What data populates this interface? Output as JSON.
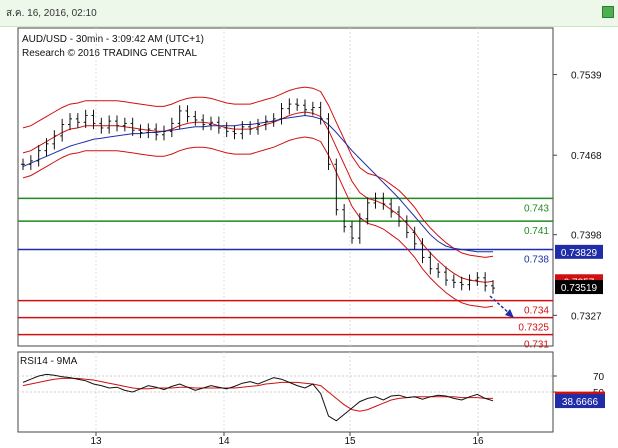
{
  "window": {
    "timestamp": "ส.ค. 16, 2016, 02:10"
  },
  "chart_data": {
    "type": "line",
    "title": "AUD/USD - 30min - 3:09:42 AM (UTC+1)",
    "subtitle": "Research © 2016 TRADING CENTRAL",
    "price_axis_ticks": [
      "0.7539",
      "0.7468",
      "0.7398",
      "0.7327"
    ],
    "ylim": [
      0.73,
      0.758
    ],
    "x_ticks": [
      "13",
      "14",
      "15",
      "16"
    ],
    "levels": [
      {
        "label": "0.743",
        "value": 0.743,
        "color": "#1f8a1f"
      },
      {
        "label": "0.741",
        "value": 0.741,
        "color": "#1f8a1f"
      },
      {
        "label": "0.738",
        "value": 0.7385,
        "color": "#1f2ea8"
      },
      {
        "label": "0.734",
        "value": 0.734,
        "color": "#d01010"
      },
      {
        "label": "0.7325",
        "value": 0.7325,
        "color": "#d01010"
      },
      {
        "label": "0.731",
        "value": 0.731,
        "color": "#d01010"
      }
    ],
    "price_tags": [
      {
        "label": "0.73829",
        "value": 0.73829,
        "color": "#1f2ea8"
      },
      {
        "label": "0.7357",
        "value": 0.7357,
        "color": "#d01010"
      },
      {
        "label": "0.73519",
        "value": 0.73519,
        "color": "#000000"
      }
    ],
    "price_series": [
      0.746,
      0.7463,
      0.7472,
      0.7478,
      0.7485,
      0.7495,
      0.75,
      0.7497,
      0.7503,
      0.7496,
      0.7492,
      0.7498,
      0.7494,
      0.7496,
      0.749,
      0.7488,
      0.7491,
      0.7486,
      0.7489,
      0.7496,
      0.7507,
      0.7502,
      0.7499,
      0.7495,
      0.7497,
      0.7492,
      0.7489,
      0.7487,
      0.7493,
      0.7491,
      0.7495,
      0.7498,
      0.75,
      0.7509,
      0.7513,
      0.7512,
      0.7508,
      0.751,
      0.75,
      0.746,
      0.742,
      0.7405,
      0.7395,
      0.7412,
      0.7426,
      0.743,
      0.7425,
      0.7418,
      0.741,
      0.74,
      0.739,
      0.7378,
      0.7368,
      0.7365,
      0.7358,
      0.7356,
      0.7354,
      0.7358,
      0.736,
      0.7353,
      0.7351
    ],
    "ma_fast": [
      0.747,
      0.7472,
      0.7476,
      0.748,
      0.7484,
      0.7488,
      0.7491,
      0.7492,
      0.7494,
      0.7494,
      0.7494,
      0.7494,
      0.7494,
      0.7493,
      0.7492,
      0.7491,
      0.749,
      0.7489,
      0.7489,
      0.7491,
      0.7494,
      0.7496,
      0.7497,
      0.7497,
      0.7496,
      0.7494,
      0.7492,
      0.7491,
      0.7491,
      0.7491,
      0.7493,
      0.7495,
      0.7497,
      0.75,
      0.7503,
      0.7505,
      0.7506,
      0.7505,
      0.7502,
      0.749,
      0.7475,
      0.746,
      0.7445,
      0.7435,
      0.743,
      0.7428,
      0.7425,
      0.742,
      0.7415,
      0.7408,
      0.74,
      0.739,
      0.7382,
      0.7375,
      0.7369,
      0.7364,
      0.736,
      0.7358,
      0.7357,
      0.7356,
      0.7357
    ],
    "ma_slow": [
      0.7458,
      0.7461,
      0.7464,
      0.7467,
      0.747,
      0.7473,
      0.7476,
      0.7478,
      0.748,
      0.7482,
      0.7483,
      0.7484,
      0.7485,
      0.7486,
      0.7487,
      0.7487,
      0.7488,
      0.7488,
      0.7489,
      0.749,
      0.7491,
      0.7492,
      0.7493,
      0.7493,
      0.7494,
      0.7494,
      0.7494,
      0.7494,
      0.7495,
      0.7495,
      0.7496,
      0.7497,
      0.7498,
      0.75,
      0.7501,
      0.7502,
      0.7503,
      0.7502,
      0.75,
      0.7495,
      0.7488,
      0.748,
      0.7472,
      0.7465,
      0.7458,
      0.7451,
      0.7444,
      0.7437,
      0.743,
      0.7422,
      0.7414,
      0.7406,
      0.7398,
      0.7392,
      0.7388,
      0.7386,
      0.7385,
      0.7384,
      0.7383,
      0.7383,
      0.7383
    ],
    "rsi": {
      "label": "RSI14 - 9MA",
      "ylim": [
        0,
        100
      ],
      "ticks": [
        "70",
        "50"
      ],
      "tags": [
        {
          "label": "41.7273",
          "value": 41.7273,
          "color": "#d01010"
        },
        {
          "label": "38.6666",
          "value": 38.6666,
          "color": "#1f2ea8"
        }
      ],
      "rsi_values": [
        62,
        66,
        70,
        72,
        71,
        69,
        68,
        66,
        64,
        60,
        58,
        55,
        56,
        52,
        50,
        54,
        58,
        56,
        53,
        57,
        60,
        56,
        52,
        55,
        58,
        56,
        54,
        57,
        61,
        63,
        60,
        64,
        68,
        66,
        62,
        58,
        55,
        60,
        48,
        20,
        14,
        22,
        30,
        38,
        42,
        44,
        40,
        45,
        46,
        43,
        44,
        41,
        44,
        46,
        45,
        42,
        40,
        44,
        47,
        42,
        39
      ],
      "ma_values": [
        58,
        60,
        62,
        64,
        66,
        67,
        67,
        67,
        66,
        65,
        63,
        61,
        59,
        57,
        55,
        54,
        54,
        55,
        55,
        55,
        56,
        56,
        55,
        55,
        55,
        55,
        55,
        55,
        56,
        57,
        58,
        60,
        61,
        62,
        62,
        62,
        61,
        60,
        58,
        50,
        42,
        34,
        28,
        26,
        28,
        32,
        36,
        40,
        42,
        43,
        44,
        44,
        44,
        44,
        44,
        44,
        43,
        43,
        43,
        42,
        42
      ]
    }
  }
}
